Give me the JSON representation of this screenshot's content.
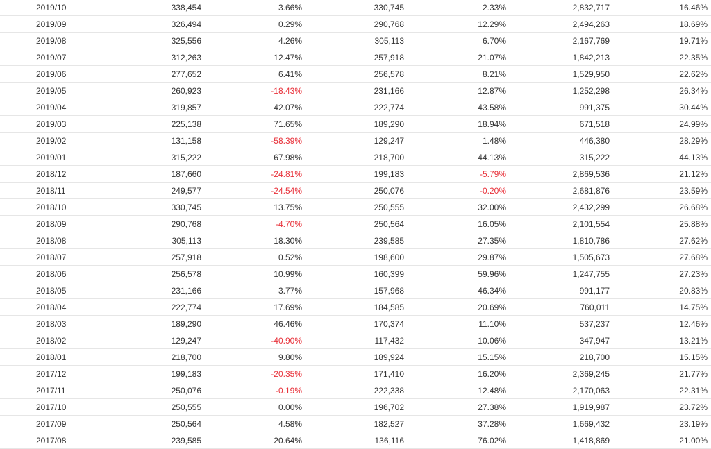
{
  "table": {
    "rows": [
      [
        "2019/10",
        "338,454",
        "3.66%",
        "330,745",
        "2.33%",
        "2,832,717",
        "16.46%"
      ],
      [
        "2019/09",
        "326,494",
        "0.29%",
        "290,768",
        "12.29%",
        "2,494,263",
        "18.69%"
      ],
      [
        "2019/08",
        "325,556",
        "4.26%",
        "305,113",
        "6.70%",
        "2,167,769",
        "19.71%"
      ],
      [
        "2019/07",
        "312,263",
        "12.47%",
        "257,918",
        "21.07%",
        "1,842,213",
        "22.35%"
      ],
      [
        "2019/06",
        "277,652",
        "6.41%",
        "256,578",
        "8.21%",
        "1,529,950",
        "22.62%"
      ],
      [
        "2019/05",
        "260,923",
        "-18.43%",
        "231,166",
        "12.87%",
        "1,252,298",
        "26.34%"
      ],
      [
        "2019/04",
        "319,857",
        "42.07%",
        "222,774",
        "43.58%",
        "991,375",
        "30.44%"
      ],
      [
        "2019/03",
        "225,138",
        "71.65%",
        "189,290",
        "18.94%",
        "671,518",
        "24.99%"
      ],
      [
        "2019/02",
        "131,158",
        "-58.39%",
        "129,247",
        "1.48%",
        "446,380",
        "28.29%"
      ],
      [
        "2019/01",
        "315,222",
        "67.98%",
        "218,700",
        "44.13%",
        "315,222",
        "44.13%"
      ],
      [
        "2018/12",
        "187,660",
        "-24.81%",
        "199,183",
        "-5.79%",
        "2,869,536",
        "21.12%"
      ],
      [
        "2018/11",
        "249,577",
        "-24.54%",
        "250,076",
        "-0.20%",
        "2,681,876",
        "23.59%"
      ],
      [
        "2018/10",
        "330,745",
        "13.75%",
        "250,555",
        "32.00%",
        "2,432,299",
        "26.68%"
      ],
      [
        "2018/09",
        "290,768",
        "-4.70%",
        "250,564",
        "16.05%",
        "2,101,554",
        "25.88%"
      ],
      [
        "2018/08",
        "305,113",
        "18.30%",
        "239,585",
        "27.35%",
        "1,810,786",
        "27.62%"
      ],
      [
        "2018/07",
        "257,918",
        "0.52%",
        "198,600",
        "29.87%",
        "1,505,673",
        "27.68%"
      ],
      [
        "2018/06",
        "256,578",
        "10.99%",
        "160,399",
        "59.96%",
        "1,247,755",
        "27.23%"
      ],
      [
        "2018/05",
        "231,166",
        "3.77%",
        "157,968",
        "46.34%",
        "991,177",
        "20.83%"
      ],
      [
        "2018/04",
        "222,774",
        "17.69%",
        "184,585",
        "20.69%",
        "760,011",
        "14.75%"
      ],
      [
        "2018/03",
        "189,290",
        "46.46%",
        "170,374",
        "11.10%",
        "537,237",
        "12.46%"
      ],
      [
        "2018/02",
        "129,247",
        "-40.90%",
        "117,432",
        "10.06%",
        "347,947",
        "13.21%"
      ],
      [
        "2018/01",
        "218,700",
        "9.80%",
        "189,924",
        "15.15%",
        "218,700",
        "15.15%"
      ],
      [
        "2017/12",
        "199,183",
        "-20.35%",
        "171,410",
        "16.20%",
        "2,369,245",
        "21.77%"
      ],
      [
        "2017/11",
        "250,076",
        "-0.19%",
        "222,338",
        "12.48%",
        "2,170,063",
        "22.31%"
      ],
      [
        "2017/10",
        "250,555",
        "0.00%",
        "196,702",
        "27.38%",
        "1,919,987",
        "23.72%"
      ],
      [
        "2017/09",
        "250,564",
        "4.58%",
        "182,527",
        "37.28%",
        "1,669,432",
        "23.19%"
      ],
      [
        "2017/08",
        "239,585",
        "20.64%",
        "136,116",
        "76.02%",
        "1,418,869",
        "21.00%"
      ]
    ]
  },
  "colors": {
    "text": "#333333",
    "negative": "#e8313a",
    "row_border": "#e6e6e6",
    "background": "#ffffff"
  }
}
